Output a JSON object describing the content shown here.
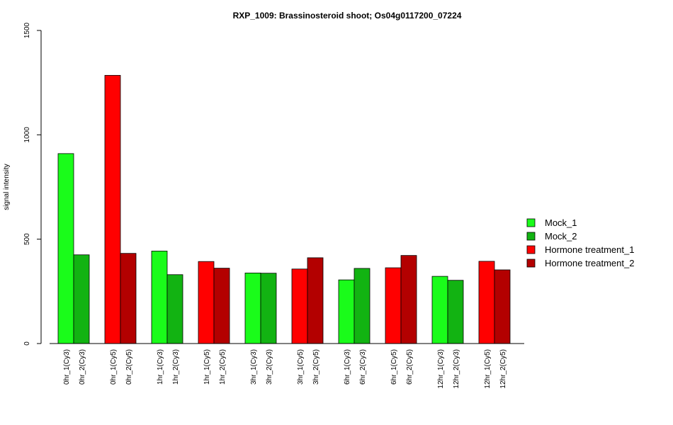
{
  "chart_data": {
    "type": "bar",
    "title": "RXP_1009: Brassinosteroid shoot; Os04g0117200_07224",
    "ylabel": "signal intensity",
    "xlabel": "",
    "ylim": [
      0,
      1500
    ],
    "yticks": [
      0,
      500,
      1000,
      1500
    ],
    "categories": [
      "0hr_1(Cy3)",
      "0hr_2(Cy3)",
      "0hr_1(Cy5)",
      "0hr_2(Cy5)",
      "1hr_1(Cy3)",
      "1hr_2(Cy3)",
      "1hr_1(Cy5)",
      "1hr_2(Cy5)",
      "3hr_1(Cy3)",
      "3hr_2(Cy3)",
      "3hr_1(Cy5)",
      "3hr_2(Cy5)",
      "6hr_1(Cy3)",
      "6hr_2(Cy3)",
      "6hr_1(Cy5)",
      "6hr_2(Cy5)",
      "12hr_1(Cy3)",
      "12hr_2(Cy3)",
      "12hr_1(Cy5)",
      "12hr_2(Cy5)"
    ],
    "values": [
      910,
      425,
      1285,
      432,
      443,
      330,
      393,
      361,
      338,
      337,
      357,
      411,
      305,
      360,
      363,
      422,
      322,
      303,
      394,
      353
    ],
    "groups": [
      0,
      1,
      2,
      3,
      0,
      1,
      2,
      3,
      0,
      1,
      2,
      3,
      0,
      1,
      2,
      3,
      0,
      1,
      2,
      3
    ],
    "legend": [
      {
        "label": "Mock_1",
        "color": "#1afc1a"
      },
      {
        "label": "Mock_2",
        "color": "#12b312"
      },
      {
        "label": "Hormone treatment_1",
        "color": "#ff0000"
      },
      {
        "label": "Hormone treatment_2",
        "color": "#b30000"
      }
    ],
    "legend_position": "right",
    "grid": false
  }
}
